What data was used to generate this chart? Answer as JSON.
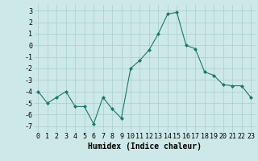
{
  "x": [
    0,
    1,
    2,
    3,
    4,
    5,
    6,
    7,
    8,
    9,
    10,
    11,
    12,
    13,
    14,
    15,
    16,
    17,
    18,
    19,
    20,
    21,
    22,
    23
  ],
  "y": [
    -4.0,
    -5.0,
    -4.5,
    -4.0,
    -5.3,
    -5.3,
    -6.8,
    -4.5,
    -5.5,
    -6.3,
    -2.0,
    -1.3,
    -0.4,
    1.0,
    2.7,
    2.85,
    0.0,
    -0.3,
    -2.3,
    -2.6,
    -3.4,
    -3.5,
    -3.5,
    -4.5
  ],
  "line_color": "#1a7a6a",
  "marker": "D",
  "marker_size": 2,
  "bg_color": "#cce8e8",
  "grid_color": "#aacece",
  "xlabel": "Humidex (Indice chaleur)",
  "xlim": [
    -0.5,
    23.5
  ],
  "ylim": [
    -7.5,
    3.5
  ],
  "yticks": [
    -7,
    -6,
    -5,
    -4,
    -3,
    -2,
    -1,
    0,
    1,
    2,
    3
  ],
  "xticks": [
    0,
    1,
    2,
    3,
    4,
    5,
    6,
    7,
    8,
    9,
    10,
    11,
    12,
    13,
    14,
    15,
    16,
    17,
    18,
    19,
    20,
    21,
    22,
    23
  ],
  "tick_fontsize": 6,
  "xlabel_fontsize": 7
}
